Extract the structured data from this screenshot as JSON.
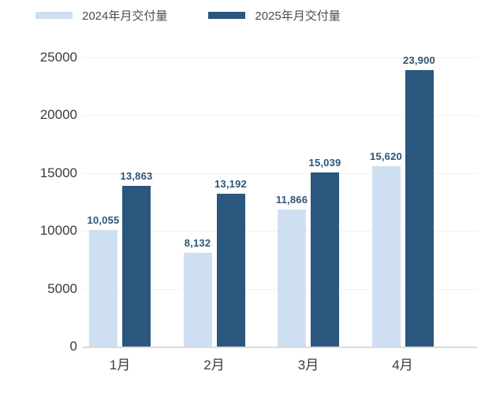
{
  "chart_data": {
    "type": "bar",
    "title": "",
    "xlabel": "",
    "ylabel": "",
    "categories": [
      "1月",
      "2月",
      "3月",
      "4月"
    ],
    "series": [
      {
        "name": "2024年月交付量",
        "color": "#cfdff2",
        "values": [
          10055,
          8132,
          11866,
          15620
        ],
        "labels": [
          "10,055",
          "8,132",
          "11,866",
          "15,620"
        ]
      },
      {
        "name": "2025年月交付量",
        "color": "#2b567d",
        "values": [
          13863,
          13192,
          15039,
          23900
        ],
        "labels": [
          "13,863",
          "13,192",
          "15,039",
          "23,900"
        ]
      }
    ],
    "y_axis": {
      "min": 0,
      "max": 25000,
      "ticks": [
        0,
        5000,
        10000,
        15000,
        20000,
        25000
      ],
      "tick_labels": [
        "0",
        "5000",
        "10000",
        "15000",
        "20000",
        "25000"
      ]
    },
    "grid": true,
    "legend_position": "top",
    "colors": {
      "data_label": "#2b5578",
      "axis_text": "#3b3b3b",
      "gridline": "#f2f2f2",
      "baseline": "#dcdcdc",
      "background": "#ffffff"
    }
  }
}
